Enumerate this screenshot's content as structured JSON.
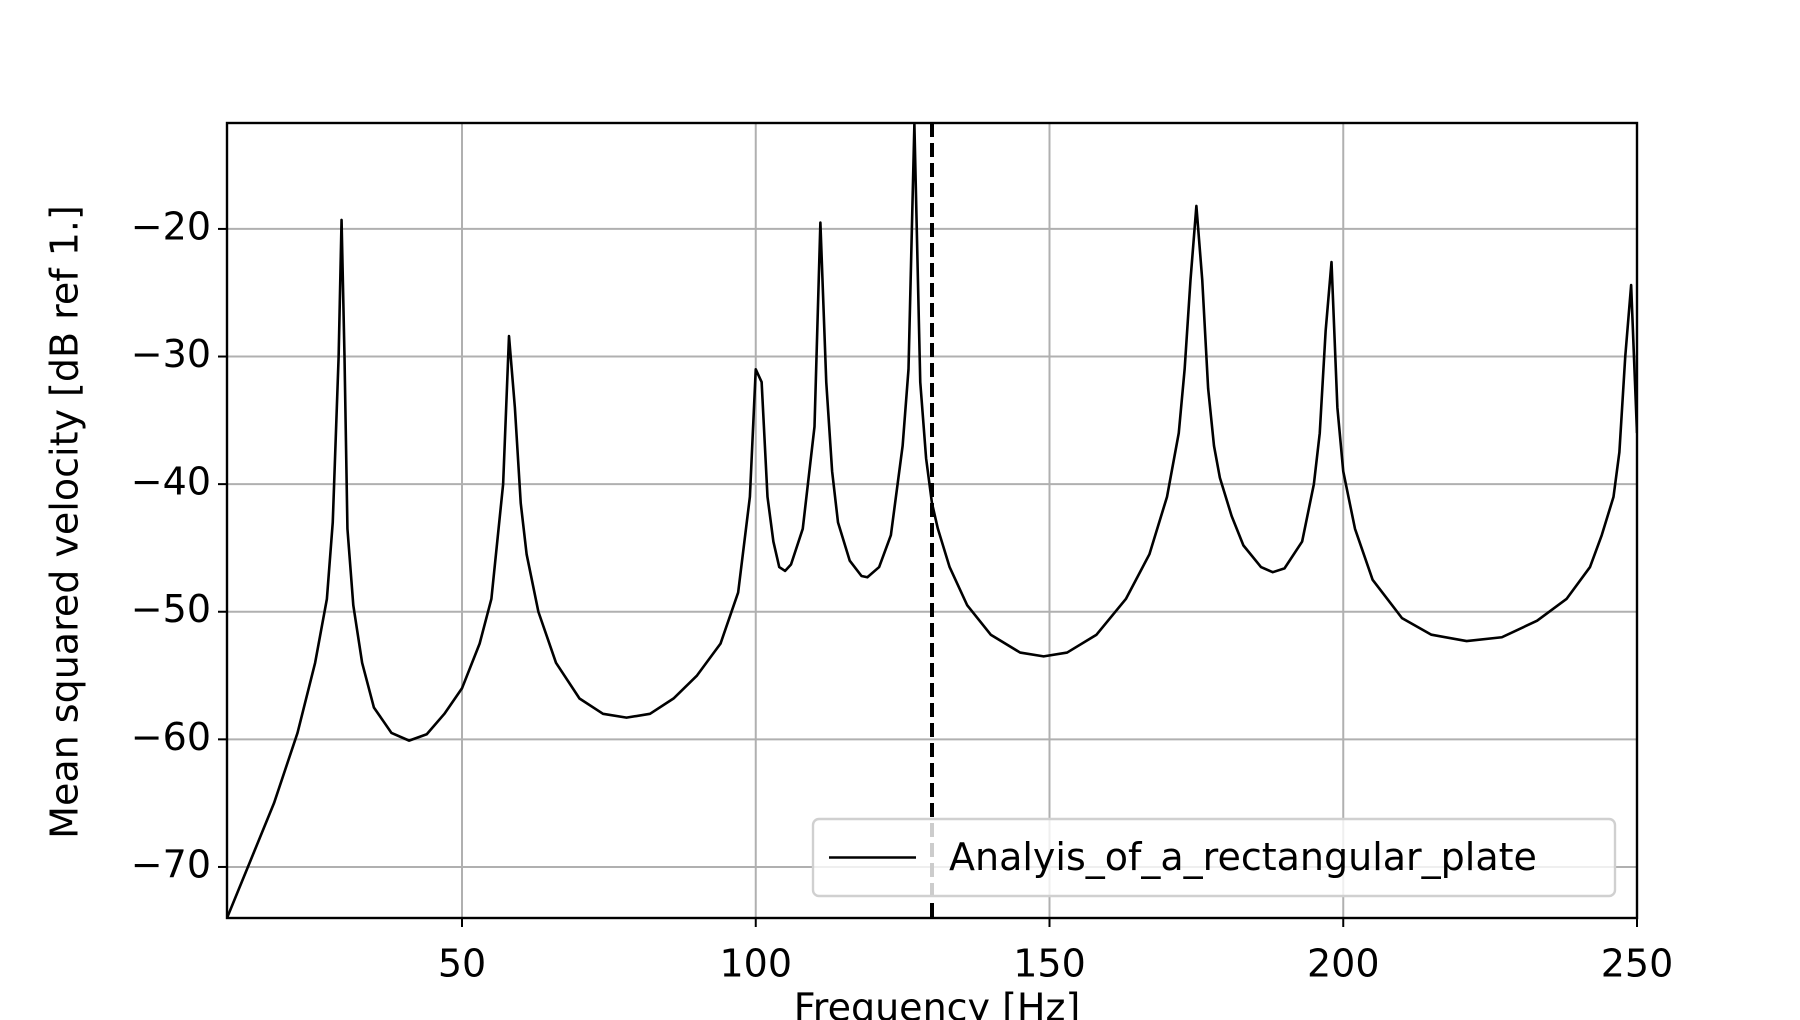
{
  "chart_data": {
    "type": "line",
    "xlabel": "Frequency [Hz]",
    "ylabel": "Mean squared velocity [dB ref 1.]",
    "x": [
      10,
      14,
      18,
      22,
      25,
      27,
      28,
      29,
      29.5,
      30,
      30.5,
      31.5,
      33,
      35,
      38,
      41,
      44,
      47,
      50,
      53,
      55,
      57,
      58,
      59,
      60,
      61,
      63,
      66,
      70,
      74,
      78,
      82,
      86,
      90,
      94,
      97,
      99,
      100,
      101,
      102,
      103,
      104,
      105,
      106,
      108,
      110,
      111,
      112,
      113,
      114,
      116,
      118,
      119,
      121,
      123,
      125,
      126,
      127,
      128,
      129,
      130,
      131,
      133,
      136,
      140,
      145,
      149,
      153,
      158,
      163,
      167,
      170,
      172,
      173,
      174,
      175,
      176,
      177,
      178,
      179,
      181,
      183,
      186,
      188,
      190,
      193,
      195,
      196,
      197,
      198,
      199,
      200,
      202,
      205,
      210,
      215,
      221,
      227,
      233,
      238,
      242,
      244,
      246,
      247,
      248,
      249,
      250
    ],
    "series": [
      {
        "name": "Analyis_of_a_rectangular_plate",
        "color": "#000000",
        "values": [
          -74,
          -69.5,
          -65,
          -59.5,
          -54,
          -49,
          -43,
          -30,
          -19.3,
          -30,
          -43.5,
          -49.5,
          -54,
          -57.5,
          -59.5,
          -60.1,
          -59.6,
          -58,
          -56,
          -52.5,
          -49,
          -40,
          -28.4,
          -34,
          -41.5,
          -45.5,
          -50,
          -54,
          -56.8,
          -58,
          -58.3,
          -58,
          -56.8,
          -55,
          -52.5,
          -48.5,
          -41,
          -31,
          -32,
          -41,
          -44.5,
          -46.5,
          -46.8,
          -46.3,
          -43.5,
          -35.5,
          -19.5,
          -32,
          -39,
          -43,
          -46,
          -47.2,
          -47.3,
          -46.5,
          -44,
          -37,
          -31,
          -11.8,
          -32,
          -38,
          -41.5,
          -43.5,
          -46.5,
          -49.5,
          -51.8,
          -53.2,
          -53.5,
          -53.2,
          -51.8,
          -49,
          -45.5,
          -41,
          -36,
          -31,
          -24,
          -18.2,
          -24,
          -32.5,
          -37,
          -39.5,
          -42.5,
          -44.8,
          -46.5,
          -46.9,
          -46.6,
          -44.5,
          -40,
          -36,
          -28,
          -22.6,
          -34,
          -39,
          -43.5,
          -47.5,
          -50.5,
          -51.8,
          -52.3,
          -52,
          -50.7,
          -49,
          -46.5,
          -44,
          -41,
          -37.5,
          -30,
          -24.4,
          -36
        ]
      }
    ],
    "vline": 130,
    "xlim": [
      10,
      250
    ],
    "ylim": [
      -74,
      -11.7
    ],
    "xticks": [
      50,
      100,
      150,
      200,
      250
    ],
    "yticks": [
      {
        "value": -70,
        "label": "−70"
      },
      {
        "value": -60,
        "label": "−60"
      },
      {
        "value": -50,
        "label": "−50"
      },
      {
        "value": -40,
        "label": "−40"
      },
      {
        "value": -30,
        "label": "−30"
      },
      {
        "value": -20,
        "label": "−20"
      }
    ],
    "grid": true,
    "legend": "lower right"
  }
}
